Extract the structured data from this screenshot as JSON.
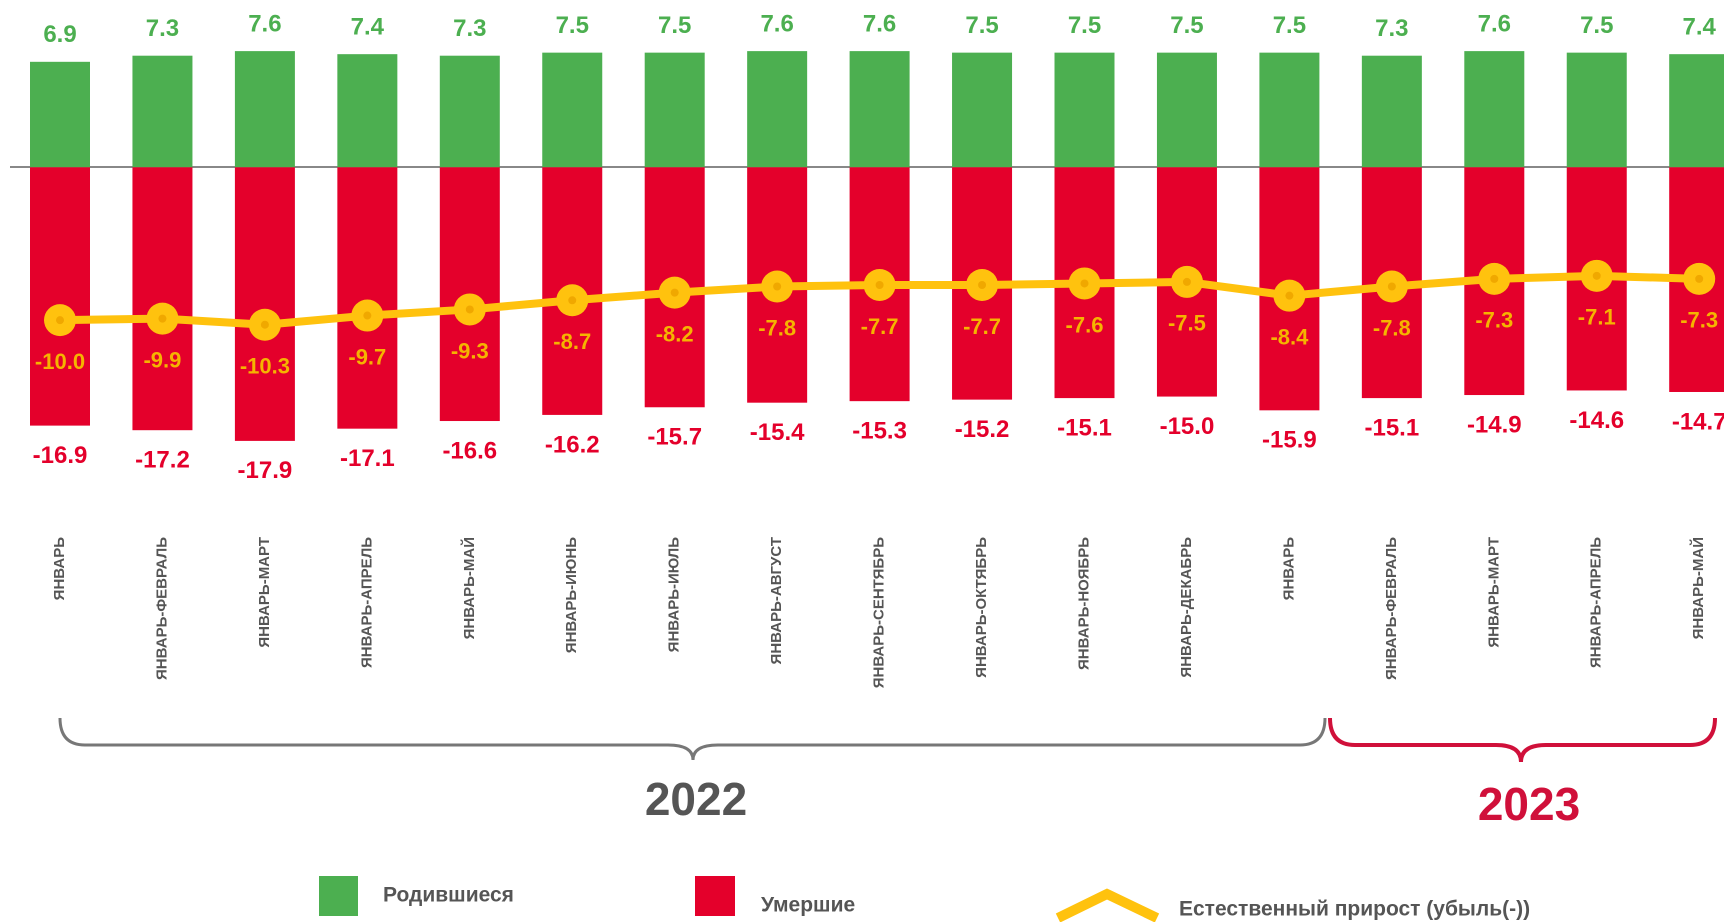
{
  "chart_data": {
    "type": "bar",
    "categories": [
      "ЯНВАРЬ",
      "ЯНВАРЬ-ФЕВРАЛЬ",
      "ЯНВАРЬ-МАРТ",
      "ЯНВАРЬ-АПРЕЛЬ",
      "ЯНВАРЬ-МАЙ",
      "ЯНВАРЬ-ИЮНЬ",
      "ЯНВАРЬ-ИЮЛЬ",
      "ЯНВАРЬ-АВГУСТ",
      "ЯНВАРЬ-СЕНТЯБРЬ",
      "ЯНВАРЬ-ОКТЯБРЬ",
      "ЯНВАРЬ-НОЯБРЬ",
      "ЯНВАРЬ-ДЕКАБРЬ",
      "ЯНВАРЬ",
      "ЯНВАРЬ-ФЕВРАЛЬ",
      "ЯНВАРЬ-МАРТ",
      "ЯНВАРЬ-АПРЕЛЬ",
      "ЯНВАРЬ-МАЙ"
    ],
    "series": [
      {
        "name": "Родившиеся",
        "color": "#4caf50",
        "values": [
          6.9,
          7.3,
          7.6,
          7.4,
          7.3,
          7.5,
          7.5,
          7.6,
          7.6,
          7.5,
          7.5,
          7.5,
          7.5,
          7.3,
          7.6,
          7.5,
          7.4
        ]
      },
      {
        "name": "Умершие",
        "color": "#e4002b",
        "values": [
          -16.9,
          -17.2,
          -17.9,
          -17.1,
          -16.6,
          -16.2,
          -15.7,
          -15.4,
          -15.3,
          -15.2,
          -15.1,
          -15.0,
          -15.9,
          -15.1,
          -14.9,
          -14.6,
          -14.7
        ],
        "value_labels": [
          "-16.9",
          "-17.2",
          "-17.9",
          "-17.1",
          "-16.6",
          "-16.2",
          "-15.7",
          "-15.4",
          "-15.3",
          "-15.2",
          "-15.1",
          "-15.0",
          "-15.9",
          "-15.1",
          "-14.9",
          "-14.6",
          "-14.7"
        ]
      },
      {
        "name": "Естественный прирост (убыль(-))",
        "color": "#ffc20e",
        "type": "line",
        "values": [
          -10.0,
          -9.9,
          -10.3,
          -9.7,
          -9.3,
          -8.7,
          -8.2,
          -7.8,
          -7.7,
          -7.7,
          -7.6,
          -7.5,
          -8.4,
          -7.8,
          -7.3,
          -7.1,
          -7.3
        ],
        "value_labels": [
          "-10.0",
          "-9.9",
          "-10.3",
          "-9.7",
          "-9.3",
          "-8.7",
          "-8.2",
          "-7.8",
          "-7.7",
          "-7.7",
          "-7.6",
          "-7.5",
          "-8.4",
          "-7.8",
          "-7.3",
          "-7.1",
          "-7.3"
        ]
      }
    ],
    "ylim": [
      -20,
      8
    ],
    "groups": [
      "2022",
      "2023"
    ]
  }
}
